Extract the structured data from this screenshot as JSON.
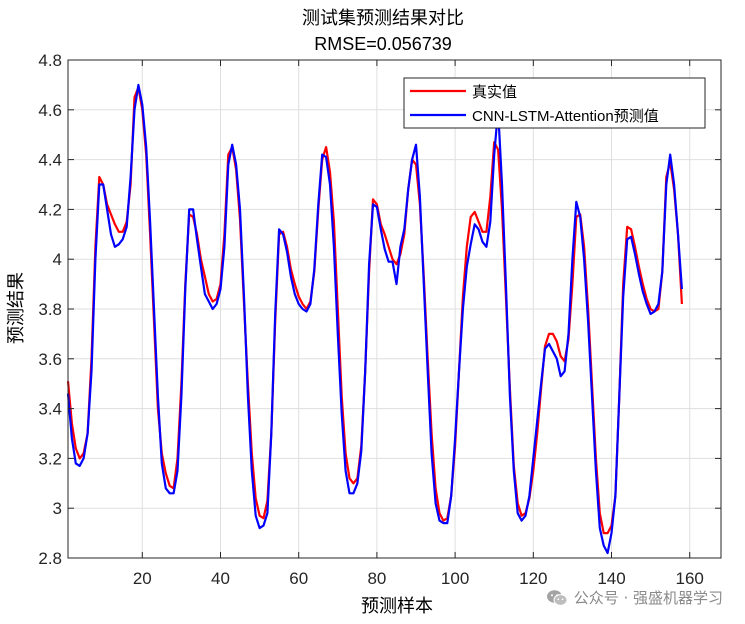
{
  "chart_data": {
    "type": "line",
    "title": "测试集预测结果对比",
    "subtitle": "RMSE=0.056739",
    "xlabel": "预测样本",
    "ylabel": "预测结果",
    "xlim": [
      1,
      168
    ],
    "ylim": [
      2.8,
      4.8
    ],
    "xticks": [
      20,
      40,
      60,
      80,
      100,
      120,
      140,
      160
    ],
    "yticks": [
      2.8,
      3,
      3.2,
      3.4,
      3.6,
      3.8,
      4,
      4.2,
      4.4,
      4.6,
      4.8
    ],
    "ytick_labels": [
      "2.8",
      "3",
      "3.2",
      "3.4",
      "3.6",
      "3.8",
      "4",
      "4.2",
      "4.4",
      "4.6",
      "4.8"
    ],
    "grid": true,
    "legend_position": "top-right",
    "series": [
      {
        "name": "真实值",
        "color": "#ff0000",
        "points": [
          [
            1,
            3.51
          ],
          [
            2,
            3.34
          ],
          [
            3,
            3.24
          ],
          [
            4,
            3.2
          ],
          [
            5,
            3.22
          ],
          [
            6,
            3.3
          ],
          [
            7,
            3.6
          ],
          [
            8,
            4.05
          ],
          [
            9,
            4.33
          ],
          [
            10,
            4.3
          ],
          [
            11,
            4.22
          ],
          [
            12,
            4.18
          ],
          [
            13,
            4.14
          ],
          [
            14,
            4.11
          ],
          [
            15,
            4.11
          ],
          [
            16,
            4.15
          ],
          [
            17,
            4.3
          ],
          [
            18,
            4.65
          ],
          [
            19,
            4.69
          ],
          [
            20,
            4.6
          ],
          [
            21,
            4.42
          ],
          [
            22,
            4.1
          ],
          [
            23,
            3.75
          ],
          [
            24,
            3.4
          ],
          [
            25,
            3.22
          ],
          [
            26,
            3.14
          ],
          [
            27,
            3.09
          ],
          [
            28,
            3.08
          ],
          [
            29,
            3.2
          ],
          [
            30,
            3.5
          ],
          [
            31,
            3.9
          ],
          [
            32,
            4.18
          ],
          [
            33,
            4.17
          ],
          [
            34,
            4.1
          ],
          [
            35,
            4.0
          ],
          [
            36,
            3.93
          ],
          [
            37,
            3.86
          ],
          [
            38,
            3.83
          ],
          [
            39,
            3.84
          ],
          [
            40,
            3.9
          ],
          [
            41,
            4.1
          ],
          [
            42,
            4.42
          ],
          [
            43,
            4.45
          ],
          [
            44,
            4.36
          ],
          [
            45,
            4.16
          ],
          [
            46,
            3.82
          ],
          [
            47,
            3.5
          ],
          [
            48,
            3.22
          ],
          [
            49,
            3.04
          ],
          [
            50,
            2.97
          ],
          [
            51,
            2.96
          ],
          [
            52,
            3.03
          ],
          [
            53,
            3.3
          ],
          [
            54,
            3.75
          ],
          [
            55,
            4.1
          ],
          [
            56,
            4.11
          ],
          [
            57,
            4.05
          ],
          [
            58,
            3.96
          ],
          [
            59,
            3.9
          ],
          [
            60,
            3.85
          ],
          [
            61,
            3.82
          ],
          [
            62,
            3.8
          ],
          [
            63,
            3.83
          ],
          [
            64,
            3.95
          ],
          [
            65,
            4.2
          ],
          [
            66,
            4.4
          ],
          [
            67,
            4.45
          ],
          [
            68,
            4.35
          ],
          [
            69,
            4.15
          ],
          [
            70,
            3.8
          ],
          [
            71,
            3.45
          ],
          [
            72,
            3.22
          ],
          [
            73,
            3.12
          ],
          [
            74,
            3.1
          ],
          [
            75,
            3.12
          ],
          [
            76,
            3.25
          ],
          [
            77,
            3.55
          ],
          [
            78,
            3.95
          ],
          [
            79,
            4.24
          ],
          [
            80,
            4.22
          ],
          [
            81,
            4.14
          ],
          [
            82,
            4.1
          ],
          [
            83,
            4.05
          ],
          [
            84,
            4.0
          ],
          [
            85,
            3.98
          ],
          [
            86,
            4.02
          ],
          [
            87,
            4.1
          ],
          [
            88,
            4.28
          ],
          [
            89,
            4.4
          ],
          [
            90,
            4.38
          ],
          [
            91,
            4.22
          ],
          [
            92,
            3.93
          ],
          [
            93,
            3.6
          ],
          [
            94,
            3.3
          ],
          [
            95,
            3.08
          ],
          [
            96,
            2.98
          ],
          [
            97,
            2.95
          ],
          [
            98,
            2.96
          ],
          [
            99,
            3.05
          ],
          [
            100,
            3.25
          ],
          [
            101,
            3.55
          ],
          [
            102,
            3.85
          ],
          [
            103,
            4.05
          ],
          [
            104,
            4.17
          ],
          [
            105,
            4.19
          ],
          [
            106,
            4.15
          ],
          [
            107,
            4.11
          ],
          [
            108,
            4.11
          ],
          [
            109,
            4.25
          ],
          [
            110,
            4.47
          ],
          [
            111,
            4.44
          ],
          [
            112,
            4.2
          ],
          [
            113,
            3.85
          ],
          [
            114,
            3.48
          ],
          [
            115,
            3.17
          ],
          [
            116,
            3.02
          ],
          [
            117,
            2.97
          ],
          [
            118,
            2.98
          ],
          [
            119,
            3.04
          ],
          [
            120,
            3.15
          ],
          [
            121,
            3.3
          ],
          [
            122,
            3.48
          ],
          [
            123,
            3.65
          ],
          [
            124,
            3.7
          ],
          [
            125,
            3.7
          ],
          [
            126,
            3.67
          ],
          [
            127,
            3.61
          ],
          [
            128,
            3.59
          ],
          [
            129,
            3.68
          ],
          [
            130,
            3.9
          ],
          [
            131,
            4.17
          ],
          [
            132,
            4.18
          ],
          [
            133,
            4.05
          ],
          [
            134,
            3.8
          ],
          [
            135,
            3.5
          ],
          [
            136,
            3.2
          ],
          [
            137,
            2.98
          ],
          [
            138,
            2.9
          ],
          [
            139,
            2.9
          ],
          [
            140,
            2.93
          ],
          [
            141,
            3.05
          ],
          [
            142,
            3.45
          ],
          [
            143,
            3.9
          ],
          [
            144,
            4.13
          ],
          [
            145,
            4.12
          ],
          [
            146,
            4.05
          ],
          [
            147,
            3.97
          ],
          [
            148,
            3.9
          ],
          [
            149,
            3.84
          ],
          [
            150,
            3.8
          ],
          [
            151,
            3.79
          ],
          [
            152,
            3.8
          ],
          [
            153,
            3.95
          ],
          [
            154,
            4.33
          ],
          [
            155,
            4.39
          ],
          [
            156,
            4.28
          ],
          [
            157,
            4.1
          ],
          [
            158,
            3.82
          ]
        ]
      },
      {
        "name": "CNN-LSTM-Attention预测值",
        "color": "#0000ff",
        "points": [
          [
            1,
            3.46
          ],
          [
            2,
            3.28
          ],
          [
            3,
            3.18
          ],
          [
            4,
            3.17
          ],
          [
            5,
            3.2
          ],
          [
            6,
            3.3
          ],
          [
            7,
            3.55
          ],
          [
            8,
            4.0
          ],
          [
            9,
            4.3
          ],
          [
            10,
            4.3
          ],
          [
            11,
            4.2
          ],
          [
            12,
            4.1
          ],
          [
            13,
            4.05
          ],
          [
            14,
            4.06
          ],
          [
            15,
            4.08
          ],
          [
            16,
            4.13
          ],
          [
            17,
            4.33
          ],
          [
            18,
            4.6
          ],
          [
            19,
            4.7
          ],
          [
            20,
            4.62
          ],
          [
            21,
            4.45
          ],
          [
            22,
            4.15
          ],
          [
            23,
            3.8
          ],
          [
            24,
            3.45
          ],
          [
            25,
            3.18
          ],
          [
            26,
            3.08
          ],
          [
            27,
            3.06
          ],
          [
            28,
            3.06
          ],
          [
            29,
            3.15
          ],
          [
            30,
            3.45
          ],
          [
            31,
            3.88
          ],
          [
            32,
            4.2
          ],
          [
            33,
            4.2
          ],
          [
            34,
            4.08
          ],
          [
            35,
            3.97
          ],
          [
            36,
            3.86
          ],
          [
            37,
            3.83
          ],
          [
            38,
            3.8
          ],
          [
            39,
            3.82
          ],
          [
            40,
            3.88
          ],
          [
            41,
            4.05
          ],
          [
            42,
            4.38
          ],
          [
            43,
            4.46
          ],
          [
            44,
            4.38
          ],
          [
            45,
            4.2
          ],
          [
            46,
            3.85
          ],
          [
            47,
            3.45
          ],
          [
            48,
            3.15
          ],
          [
            49,
            2.97
          ],
          [
            50,
            2.92
          ],
          [
            51,
            2.93
          ],
          [
            52,
            2.98
          ],
          [
            53,
            3.3
          ],
          [
            54,
            3.78
          ],
          [
            55,
            4.12
          ],
          [
            56,
            4.1
          ],
          [
            57,
            4.03
          ],
          [
            58,
            3.93
          ],
          [
            59,
            3.86
          ],
          [
            60,
            3.82
          ],
          [
            61,
            3.8
          ],
          [
            62,
            3.79
          ],
          [
            63,
            3.82
          ],
          [
            64,
            3.96
          ],
          [
            65,
            4.22
          ],
          [
            66,
            4.42
          ],
          [
            67,
            4.41
          ],
          [
            68,
            4.3
          ],
          [
            69,
            4.05
          ],
          [
            70,
            3.7
          ],
          [
            71,
            3.38
          ],
          [
            72,
            3.15
          ],
          [
            73,
            3.06
          ],
          [
            74,
            3.06
          ],
          [
            75,
            3.1
          ],
          [
            76,
            3.23
          ],
          [
            77,
            3.55
          ],
          [
            78,
            3.98
          ],
          [
            79,
            4.22
          ],
          [
            80,
            4.21
          ],
          [
            81,
            4.12
          ],
          [
            82,
            4.04
          ],
          [
            83,
            3.99
          ],
          [
            84,
            3.99
          ],
          [
            85,
            3.9
          ],
          [
            86,
            4.05
          ],
          [
            87,
            4.12
          ],
          [
            88,
            4.28
          ],
          [
            89,
            4.4
          ],
          [
            90,
            4.46
          ],
          [
            91,
            4.25
          ],
          [
            92,
            3.9
          ],
          [
            93,
            3.55
          ],
          [
            94,
            3.22
          ],
          [
            95,
            3.02
          ],
          [
            96,
            2.95
          ],
          [
            97,
            2.94
          ],
          [
            98,
            2.94
          ],
          [
            99,
            3.05
          ],
          [
            100,
            3.28
          ],
          [
            101,
            3.55
          ],
          [
            102,
            3.8
          ],
          [
            103,
            3.97
          ],
          [
            104,
            4.06
          ],
          [
            105,
            4.14
          ],
          [
            106,
            4.12
          ],
          [
            107,
            4.07
          ],
          [
            108,
            4.05
          ],
          [
            109,
            4.15
          ],
          [
            110,
            4.42
          ],
          [
            111,
            4.6
          ],
          [
            112,
            4.3
          ],
          [
            113,
            3.9
          ],
          [
            114,
            3.45
          ],
          [
            115,
            3.15
          ],
          [
            116,
            2.98
          ],
          [
            117,
            2.95
          ],
          [
            118,
            2.97
          ],
          [
            119,
            3.05
          ],
          [
            120,
            3.2
          ],
          [
            121,
            3.35
          ],
          [
            122,
            3.5
          ],
          [
            123,
            3.64
          ],
          [
            124,
            3.66
          ],
          [
            125,
            3.63
          ],
          [
            126,
            3.6
          ],
          [
            127,
            3.53
          ],
          [
            128,
            3.55
          ],
          [
            129,
            3.7
          ],
          [
            130,
            4.0
          ],
          [
            131,
            4.23
          ],
          [
            132,
            4.17
          ],
          [
            133,
            4.0
          ],
          [
            134,
            3.75
          ],
          [
            135,
            3.45
          ],
          [
            136,
            3.15
          ],
          [
            137,
            2.92
          ],
          [
            138,
            2.85
          ],
          [
            139,
            2.82
          ],
          [
            140,
            2.9
          ],
          [
            141,
            3.05
          ],
          [
            142,
            3.45
          ],
          [
            143,
            3.85
          ],
          [
            144,
            4.08
          ],
          [
            145,
            4.09
          ],
          [
            146,
            4.02
          ],
          [
            147,
            3.94
          ],
          [
            148,
            3.87
          ],
          [
            149,
            3.82
          ],
          [
            150,
            3.78
          ],
          [
            151,
            3.79
          ],
          [
            152,
            3.82
          ],
          [
            153,
            3.95
          ],
          [
            154,
            4.3
          ],
          [
            155,
            4.42
          ],
          [
            156,
            4.3
          ],
          [
            157,
            4.1
          ],
          [
            158,
            3.88
          ]
        ]
      }
    ]
  },
  "watermark": {
    "text": "公众号 · 强盛机器学习",
    "icon": "wechat-icon"
  }
}
